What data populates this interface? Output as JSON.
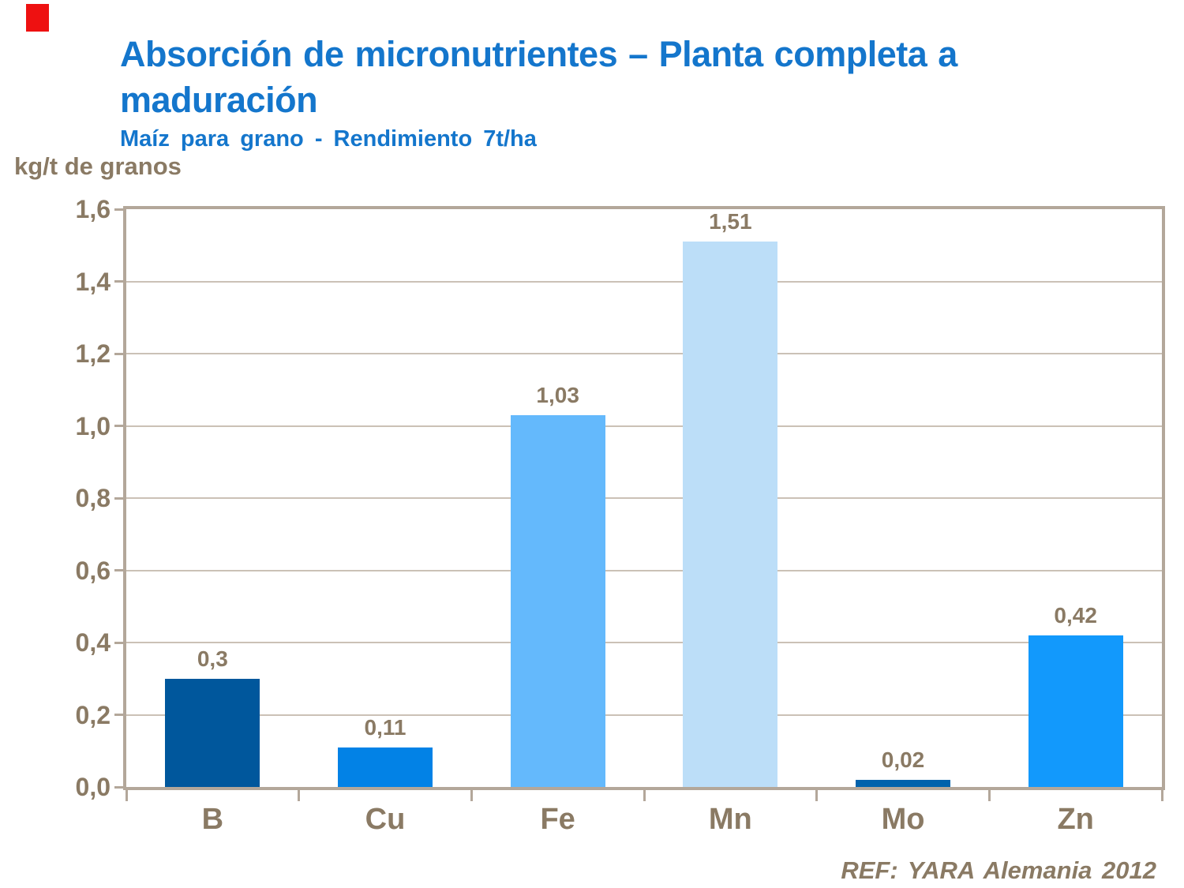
{
  "slide": {
    "title_line1": "Absorción de micronutrientes – Planta completa a",
    "title_line2": "maduración",
    "subtitle": "Maíz para grano - Rendimiento 7t/ha",
    "unit_label": "kg/t de granos",
    "reference": "REF: YARA Alemania 2012"
  },
  "colors": {
    "title_blue": "#1476CC",
    "text_brown": "#8A7A64",
    "frame_axis": "#B3A79A",
    "gridline": "#CBC1B6",
    "corner_marker_red": "#EE1111",
    "background": "#FFFFFF"
  },
  "chart_data": {
    "type": "bar",
    "title": "Absorción de micronutrientes – Planta completa a maduración",
    "subtitle": "Maíz para grano - Rendimiento 7t/ha",
    "ylabel": "kg/t de granos",
    "xlabel": "",
    "categories": [
      "B",
      "Cu",
      "Fe",
      "Mn",
      "Mo",
      "Zn"
    ],
    "values": [
      0.3,
      0.11,
      1.03,
      1.51,
      0.02,
      0.42
    ],
    "value_labels": [
      "0,3",
      "0,11",
      "1,03",
      "1,51",
      "0,02",
      "0,42"
    ],
    "bar_colors": [
      "#00579C",
      "#0282E6",
      "#64B9FC",
      "#BCDEF8",
      "#0062AC",
      "#1299FC"
    ],
    "ylim": [
      0,
      1.6
    ],
    "ytick_step": 0.2,
    "ytick_labels": [
      "0,0",
      "0,2",
      "0,4",
      "0,6",
      "0,8",
      "1,0",
      "1,2",
      "1,4",
      "1,6"
    ],
    "grid": true,
    "legend": false,
    "decimal_separator": ",",
    "source": "REF: YARA Alemania 2012"
  }
}
